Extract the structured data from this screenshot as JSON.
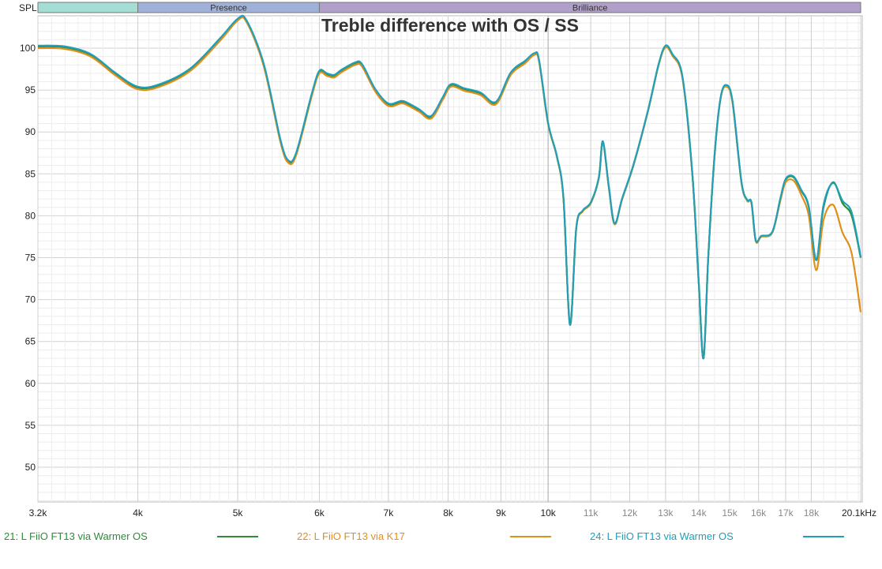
{
  "chart_data": {
    "type": "line",
    "title": "Treble difference with OS / SS",
    "ylabel": "SPL",
    "xlabel": "",
    "x_unit": "kHz",
    "x_scale": "log",
    "xlim": [
      3200,
      20100
    ],
    "ylim": [
      46,
      103.5
    ],
    "grid": true,
    "legend_position": "bottom",
    "y_ticks": [
      50,
      55,
      60,
      65,
      70,
      75,
      80,
      85,
      90,
      95,
      100
    ],
    "x_ticks": [
      {
        "f": 3200,
        "label": "3.2k",
        "major": true
      },
      {
        "f": 4000,
        "label": "4k",
        "major": true
      },
      {
        "f": 5000,
        "label": "5k",
        "major": true
      },
      {
        "f": 6000,
        "label": "6k",
        "major": true
      },
      {
        "f": 7000,
        "label": "7k",
        "major": true
      },
      {
        "f": 8000,
        "label": "8k",
        "major": true
      },
      {
        "f": 9000,
        "label": "9k",
        "major": true
      },
      {
        "f": 10000,
        "label": "10k",
        "major": true
      },
      {
        "f": 11000,
        "label": "11k",
        "major": false
      },
      {
        "f": 12000,
        "label": "12k",
        "major": false
      },
      {
        "f": 13000,
        "label": "13k",
        "major": false
      },
      {
        "f": 14000,
        "label": "14k",
        "major": false
      },
      {
        "f": 15000,
        "label": "15k",
        "major": false
      },
      {
        "f": 16000,
        "label": "16k",
        "major": false
      },
      {
        "f": 17000,
        "label": "17k",
        "major": false
      },
      {
        "f": 18000,
        "label": "18k",
        "major": false
      },
      {
        "f": 20100,
        "label": "20.1kHz",
        "major": true
      }
    ],
    "bands": [
      {
        "label": "",
        "from": 3200,
        "to": 4000,
        "color": "#a3ddd3"
      },
      {
        "label": "Presence",
        "from": 4000,
        "to": 6000,
        "color": "#9fb1d9"
      },
      {
        "label": "Brilliance",
        "from": 6000,
        "to": 20100,
        "color": "#b09fc8"
      }
    ],
    "series": [
      {
        "name": "21: L FiiO FT13 via Warmer OS",
        "color": "#2e8b3a",
        "points": [
          [
            3200,
            100.2
          ],
          [
            3400,
            100.1
          ],
          [
            3600,
            99.2
          ],
          [
            3800,
            97
          ],
          [
            4000,
            95.3
          ],
          [
            4200,
            95.6
          ],
          [
            4500,
            97.5
          ],
          [
            4800,
            101
          ],
          [
            5000,
            103.4
          ],
          [
            5100,
            103.2
          ],
          [
            5300,
            98
          ],
          [
            5500,
            89
          ],
          [
            5600,
            86.5
          ],
          [
            5700,
            87.5
          ],
          [
            5900,
            94.5
          ],
          [
            6000,
            97.2
          ],
          [
            6100,
            96.9
          ],
          [
            6200,
            96.7
          ],
          [
            6300,
            97.3
          ],
          [
            6500,
            98.2
          ],
          [
            6600,
            98
          ],
          [
            6800,
            95
          ],
          [
            7000,
            93.3
          ],
          [
            7200,
            93.6
          ],
          [
            7300,
            93.4
          ],
          [
            7500,
            92.6
          ],
          [
            7700,
            91.8
          ],
          [
            7900,
            94
          ],
          [
            8050,
            95.6
          ],
          [
            8300,
            95.1
          ],
          [
            8600,
            94.6
          ],
          [
            8900,
            93.5
          ],
          [
            9200,
            97
          ],
          [
            9500,
            98.4
          ],
          [
            9700,
            99.3
          ],
          [
            9800,
            98.5
          ],
          [
            10000,
            91
          ],
          [
            10200,
            87
          ],
          [
            10350,
            82
          ],
          [
            10500,
            67
          ],
          [
            10650,
            78.5
          ],
          [
            10800,
            80.5
          ],
          [
            11000,
            81.5
          ],
          [
            11200,
            84.5
          ],
          [
            11300,
            88.8
          ],
          [
            11450,
            83.5
          ],
          [
            11600,
            79
          ],
          [
            11800,
            82
          ],
          [
            12100,
            86
          ],
          [
            12500,
            92.5
          ],
          [
            12800,
            98
          ],
          [
            13000,
            100.2
          ],
          [
            13200,
            99.2
          ],
          [
            13500,
            96.5
          ],
          [
            13800,
            85
          ],
          [
            14000,
            72
          ],
          [
            14150,
            63
          ],
          [
            14300,
            75
          ],
          [
            14500,
            87
          ],
          [
            14700,
            94
          ],
          [
            14900,
            95.5
          ],
          [
            15100,
            93.5
          ],
          [
            15400,
            84
          ],
          [
            15600,
            81.8
          ],
          [
            15750,
            81.5
          ],
          [
            15900,
            77
          ],
          [
            16100,
            77.5
          ],
          [
            16500,
            78
          ],
          [
            16800,
            82
          ],
          [
            17000,
            84.3
          ],
          [
            17300,
            84.6
          ],
          [
            17600,
            83
          ],
          [
            17900,
            81
          ],
          [
            18200,
            74.7
          ],
          [
            18500,
            81
          ],
          [
            18900,
            84
          ],
          [
            19300,
            81.5
          ],
          [
            19700,
            80
          ],
          [
            20100,
            75
          ]
        ]
      },
      {
        "name": "22: L FiiO FT13 via K17",
        "color": "#e0901a",
        "points": [
          [
            3200,
            100
          ],
          [
            3400,
            99.9
          ],
          [
            3600,
            99
          ],
          [
            3800,
            96.8
          ],
          [
            4000,
            95.1
          ],
          [
            4200,
            95.4
          ],
          [
            4500,
            97.3
          ],
          [
            4800,
            100.8
          ],
          [
            5000,
            103.3
          ],
          [
            5100,
            103.1
          ],
          [
            5300,
            97.8
          ],
          [
            5500,
            88.8
          ],
          [
            5600,
            86.3
          ],
          [
            5700,
            87.3
          ],
          [
            5900,
            94.3
          ],
          [
            6000,
            97
          ],
          [
            6100,
            96.7
          ],
          [
            6200,
            96.5
          ],
          [
            6300,
            97.1
          ],
          [
            6500,
            98
          ],
          [
            6600,
            97.8
          ],
          [
            6800,
            94.8
          ],
          [
            7000,
            93.1
          ],
          [
            7200,
            93.4
          ],
          [
            7300,
            93.2
          ],
          [
            7500,
            92.4
          ],
          [
            7700,
            91.6
          ],
          [
            7900,
            93.8
          ],
          [
            8050,
            95.4
          ],
          [
            8300,
            94.9
          ],
          [
            8600,
            94.4
          ],
          [
            8900,
            93.3
          ],
          [
            9200,
            96.8
          ],
          [
            9500,
            98.2
          ],
          [
            9700,
            99.2
          ],
          [
            9800,
            98.4
          ],
          [
            10000,
            91
          ],
          [
            10200,
            87
          ],
          [
            10350,
            82
          ],
          [
            10500,
            67
          ],
          [
            10650,
            78.5
          ],
          [
            10800,
            80.5
          ],
          [
            11000,
            81.5
          ],
          [
            11200,
            84.5
          ],
          [
            11300,
            88.8
          ],
          [
            11450,
            83.5
          ],
          [
            11600,
            79
          ],
          [
            11800,
            82
          ],
          [
            12100,
            86
          ],
          [
            12500,
            92.5
          ],
          [
            12800,
            98
          ],
          [
            13000,
            100.1
          ],
          [
            13200,
            99.1
          ],
          [
            13500,
            96.4
          ],
          [
            13800,
            85
          ],
          [
            14000,
            72
          ],
          [
            14150,
            63
          ],
          [
            14300,
            75
          ],
          [
            14500,
            87
          ],
          [
            14700,
            94
          ],
          [
            14900,
            95.4
          ],
          [
            15100,
            93.4
          ],
          [
            15400,
            84
          ],
          [
            15600,
            81.8
          ],
          [
            15750,
            81.5
          ],
          [
            15900,
            77
          ],
          [
            16100,
            77.5
          ],
          [
            16500,
            78
          ],
          [
            16800,
            81.8
          ],
          [
            17000,
            84
          ],
          [
            17300,
            84.2
          ],
          [
            17600,
            82.5
          ],
          [
            17900,
            80
          ],
          [
            18200,
            73.5
          ],
          [
            18500,
            79.5
          ],
          [
            18900,
            81.3
          ],
          [
            19300,
            78
          ],
          [
            19700,
            75.5
          ],
          [
            20100,
            68.5
          ]
        ]
      },
      {
        "name": "24: L FiiO FT13 via Warmer OS",
        "color": "#1f9fb8",
        "points": [
          [
            3200,
            100.3
          ],
          [
            3400,
            100.2
          ],
          [
            3600,
            99.3
          ],
          [
            3800,
            97.1
          ],
          [
            4000,
            95.4
          ],
          [
            4200,
            95.7
          ],
          [
            4500,
            97.6
          ],
          [
            4800,
            101.1
          ],
          [
            5000,
            103.5
          ],
          [
            5100,
            103.3
          ],
          [
            5300,
            98.1
          ],
          [
            5500,
            89.1
          ],
          [
            5600,
            86.6
          ],
          [
            5700,
            87.6
          ],
          [
            5900,
            94.6
          ],
          [
            6000,
            97.3
          ],
          [
            6100,
            97
          ],
          [
            6200,
            96.8
          ],
          [
            6300,
            97.4
          ],
          [
            6500,
            98.3
          ],
          [
            6600,
            98.1
          ],
          [
            6800,
            95.1
          ],
          [
            7000,
            93.4
          ],
          [
            7200,
            93.7
          ],
          [
            7300,
            93.5
          ],
          [
            7500,
            92.7
          ],
          [
            7700,
            91.9
          ],
          [
            7900,
            94.1
          ],
          [
            8050,
            95.7
          ],
          [
            8300,
            95.2
          ],
          [
            8600,
            94.7
          ],
          [
            8900,
            93.6
          ],
          [
            9200,
            97.1
          ],
          [
            9500,
            98.5
          ],
          [
            9700,
            99.4
          ],
          [
            9800,
            98.6
          ],
          [
            10000,
            91.1
          ],
          [
            10200,
            87.1
          ],
          [
            10350,
            82.1
          ],
          [
            10500,
            67
          ],
          [
            10650,
            78.6
          ],
          [
            10800,
            80.6
          ],
          [
            11000,
            81.6
          ],
          [
            11200,
            84.6
          ],
          [
            11300,
            88.9
          ],
          [
            11450,
            83.6
          ],
          [
            11600,
            79.1
          ],
          [
            11800,
            82.1
          ],
          [
            12100,
            86.1
          ],
          [
            12500,
            92.6
          ],
          [
            12800,
            98.1
          ],
          [
            13000,
            100.3
          ],
          [
            13200,
            99.3
          ],
          [
            13500,
            96.6
          ],
          [
            13800,
            85.1
          ],
          [
            14000,
            72
          ],
          [
            14150,
            63
          ],
          [
            14300,
            75
          ],
          [
            14500,
            87.1
          ],
          [
            14700,
            94.1
          ],
          [
            14900,
            95.6
          ],
          [
            15100,
            93.6
          ],
          [
            15400,
            84.1
          ],
          [
            15600,
            81.9
          ],
          [
            15750,
            81.6
          ],
          [
            15900,
            77.1
          ],
          [
            16100,
            77.6
          ],
          [
            16500,
            78.1
          ],
          [
            16800,
            82.1
          ],
          [
            17000,
            84.4
          ],
          [
            17300,
            84.7
          ],
          [
            17600,
            83.1
          ],
          [
            17900,
            81.1
          ],
          [
            18200,
            74.8
          ],
          [
            18500,
            81.3
          ],
          [
            18900,
            83.9
          ],
          [
            19300,
            81.8
          ],
          [
            19700,
            80.4
          ],
          [
            20100,
            75.1
          ]
        ]
      }
    ]
  }
}
